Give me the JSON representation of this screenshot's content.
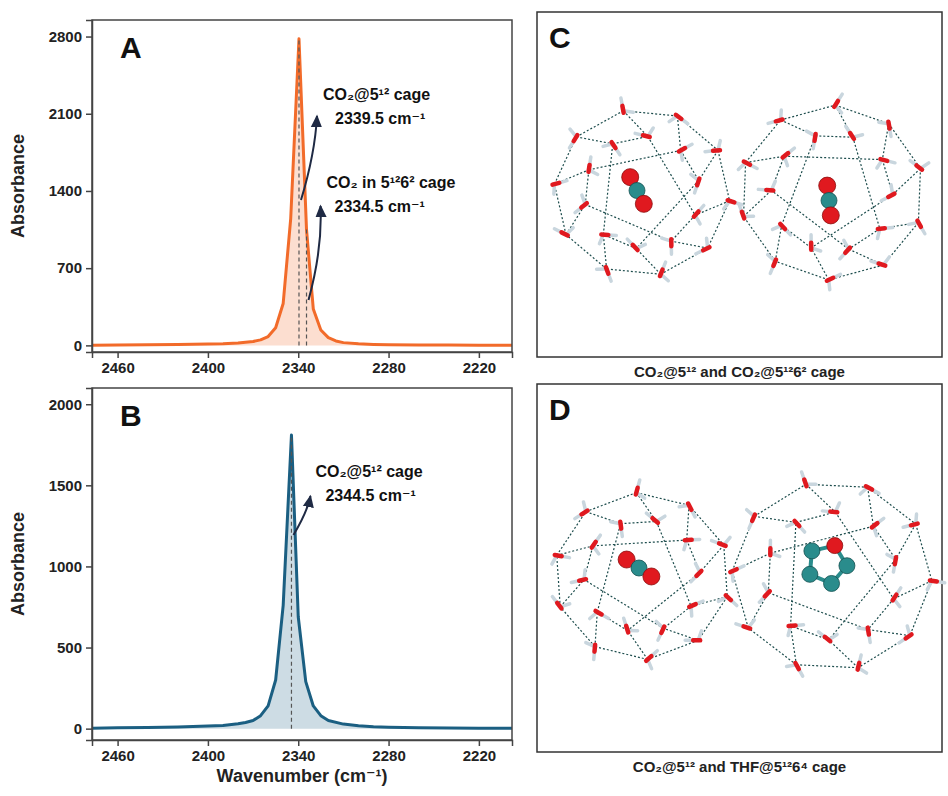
{
  "chart_data": [
    {
      "type": "area",
      "label": "A",
      "y_label": "Absorbance",
      "color": "#f26b2a",
      "x": [
        2477,
        2460,
        2440,
        2420,
        2400,
        2390,
        2380,
        2370,
        2365,
        2360,
        2355,
        2350,
        2345,
        2339.5,
        2334.5,
        2330,
        2325,
        2320,
        2315,
        2310,
        2300,
        2290,
        2280,
        2260,
        2240,
        2220,
        2198
      ],
      "values": [
        2,
        3,
        5,
        8,
        12,
        15,
        22,
        35,
        50,
        80,
        160,
        380,
        1150,
        2780,
        1050,
        330,
        140,
        70,
        40,
        25,
        14,
        9,
        6,
        4,
        3,
        2,
        2
      ],
      "xlim": [
        2477,
        2198
      ],
      "xticks": [
        2460,
        2400,
        2340,
        2280,
        2220
      ],
      "ylim": [
        -60,
        2950
      ],
      "yticks": [
        0,
        700,
        1400,
        2100,
        2800
      ],
      "annotations": [
        {
          "x": 2339.5,
          "lines": [
            "CO₂@5¹² cage",
            "2339.5 cm⁻¹"
          ]
        },
        {
          "x": 2334.5,
          "lines": [
            "CO₂ in 5¹²6² cage",
            "2334.5 cm⁻¹"
          ]
        }
      ]
    },
    {
      "type": "area",
      "label": "B",
      "y_label": "Absorbance",
      "x_label": "Wavenumber (cm⁻¹)",
      "color": "#1b5f82",
      "x": [
        2477,
        2460,
        2440,
        2420,
        2400,
        2390,
        2380,
        2375,
        2370,
        2365,
        2360,
        2355,
        2350,
        2344.5,
        2340,
        2335,
        2330,
        2325,
        2320,
        2310,
        2300,
        2290,
        2280,
        2260,
        2240,
        2220,
        2198
      ],
      "values": [
        3,
        5,
        7,
        10,
        16,
        20,
        30,
        38,
        50,
        80,
        140,
        300,
        760,
        1810,
        690,
        290,
        140,
        80,
        50,
        28,
        18,
        12,
        9,
        6,
        4,
        3,
        3
      ],
      "xlim": [
        2477,
        2198
      ],
      "xticks": [
        2460,
        2400,
        2340,
        2280,
        2220
      ],
      "ylim": [
        -70,
        2100
      ],
      "yticks": [
        0,
        500,
        1000,
        1500,
        2000
      ],
      "annotations": [
        {
          "x": 2344.5,
          "lines": [
            "CO₂@5¹² cage",
            "2344.5 cm⁻¹"
          ]
        }
      ]
    }
  ],
  "diagrams": [
    {
      "label": "C",
      "caption": "CO₂@5¹² and CO₂@5¹²6² cage"
    },
    {
      "label": "D",
      "caption": "CO₂@5¹² and THF@5¹²6⁴ cage"
    }
  ]
}
